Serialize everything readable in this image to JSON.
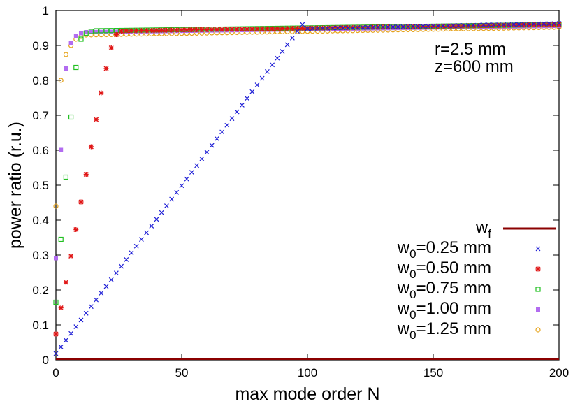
{
  "chart_data": {
    "type": "scatter",
    "title": "",
    "xlabel": "max mode order N",
    "ylabel": "power ratio (r.u.)",
    "xlim": [
      0,
      200
    ],
    "ylim": [
      0,
      1
    ],
    "x_ticks": [
      "0",
      "50",
      "100",
      "150",
      "200"
    ],
    "y_ticks": [
      "0",
      "0.1",
      "0.2",
      "0.3",
      "0.4",
      "0.5",
      "0.6",
      "0.7",
      "0.8",
      "0.9",
      "1"
    ],
    "grid": false,
    "legend_position": "lower-right",
    "annotations": [
      "r=2.5 mm",
      "z=600 mm"
    ],
    "x_step": 2,
    "series": [
      {
        "name": "w_f",
        "name_main": "w",
        "name_sub": "f",
        "style": "line",
        "color": "#8b0000",
        "x": [
          0,
          200
        ],
        "y": [
          0.003,
          0.003
        ]
      },
      {
        "name": "w_0=0.25 mm",
        "name_main": "w",
        "name_sub": "0",
        "name_rest": "=0.25 mm",
        "style": "x",
        "color": "#1f1fd6",
        "linear_to": 98,
        "y_at_0": 0.018,
        "slope": 0.00961,
        "plateau_start": 0.948,
        "plateau_end": 0.963
      },
      {
        "name": "w_0=0.50 mm",
        "name_main": "w",
        "name_sub": "0",
        "name_rest": "=0.50 mm",
        "style": "star",
        "color": "#e01515",
        "values": [
          0.074,
          0.149,
          0.222,
          0.297,
          0.373,
          0.452,
          0.531,
          0.61,
          0.688,
          0.764,
          0.834,
          0.893,
          0.931,
          0.941
        ],
        "plateau_start": 0.942,
        "plateau_end": 0.96
      },
      {
        "name": "w_0=0.75 mm",
        "name_main": "w",
        "name_sub": "0",
        "name_rest": "=0.75 mm",
        "style": "square",
        "color": "#22c022",
        "values": [
          0.165,
          0.345,
          0.523,
          0.695,
          0.837,
          0.918,
          0.935,
          0.94
        ],
        "plateau_start": 0.942,
        "plateau_end": 0.96
      },
      {
        "name": "w_0=1.00 mm",
        "name_main": "w",
        "name_sub": "0",
        "name_rest": "=1.00 mm",
        "style": "filled-square",
        "color": "#b26cf0",
        "values": [
          0.291,
          0.601,
          0.834,
          0.906,
          0.928,
          0.935
        ],
        "plateau_start": 0.938,
        "plateau_end": 0.956
      },
      {
        "name": "w_0=1.25 mm",
        "name_main": "w",
        "name_sub": "0",
        "name_rest": "=1.25 mm",
        "style": "circle",
        "color": "#e6a31a",
        "values": [
          0.44,
          0.8,
          0.874,
          0.9,
          0.918,
          0.926
        ],
        "plateau_start": 0.93,
        "plateau_end": 0.952
      }
    ]
  }
}
